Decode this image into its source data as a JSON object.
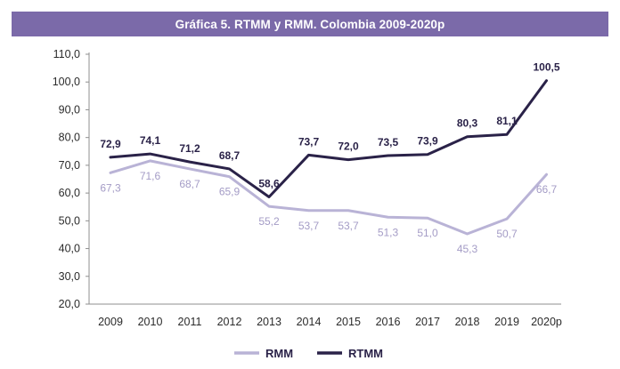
{
  "title": "Gráfica 5. RTMM y RMM. Colombia 2009-2020p",
  "colors": {
    "title_bg": "#7b6aa9",
    "rtmm": "#2a2248",
    "rmm": "#b9b3d6",
    "rmm_label": "#a49cc6",
    "axis": "#8f8f8f"
  },
  "chart_data": {
    "type": "line",
    "title": "Gráfica 5. RTMM y RMM. Colombia 2009-2020p",
    "categories": [
      "2009",
      "2010",
      "2011",
      "2012",
      "2013",
      "2014",
      "2015",
      "2016",
      "2017",
      "2018",
      "2019",
      "2020p"
    ],
    "ylim": [
      20,
      110
    ],
    "yticks": [
      20,
      30,
      40,
      50,
      60,
      70,
      80,
      90,
      100,
      110
    ],
    "ytick_labels": [
      "20,0",
      "30,0",
      "40,0",
      "50,0",
      "60,0",
      "70,0",
      "80,0",
      "90,0",
      "100,0",
      "110,0"
    ],
    "grid": false,
    "legend_position": "bottom-center",
    "series": [
      {
        "name": "RTMM",
        "values": [
          72.9,
          74.1,
          71.2,
          68.7,
          58.6,
          73.7,
          72.0,
          73.5,
          73.9,
          80.3,
          81.1,
          100.5
        ],
        "labels": [
          "72,9",
          "74,1",
          "71,2",
          "68,7",
          "58,6",
          "73,7",
          "72,0",
          "73,5",
          "73,9",
          "80,3",
          "81,1",
          "100,5"
        ]
      },
      {
        "name": "RMM",
        "values": [
          67.3,
          71.6,
          68.7,
          65.9,
          55.2,
          53.7,
          53.7,
          51.3,
          51.0,
          45.3,
          50.7,
          66.7
        ],
        "labels": [
          "67,3",
          "71,6",
          "68,7",
          "65,9",
          "55,2",
          "53,7",
          "53,7",
          "51,3",
          "51,0",
          "45,3",
          "50,7",
          "66,7"
        ]
      }
    ],
    "legend": [
      "RMM",
      "RTMM"
    ]
  }
}
